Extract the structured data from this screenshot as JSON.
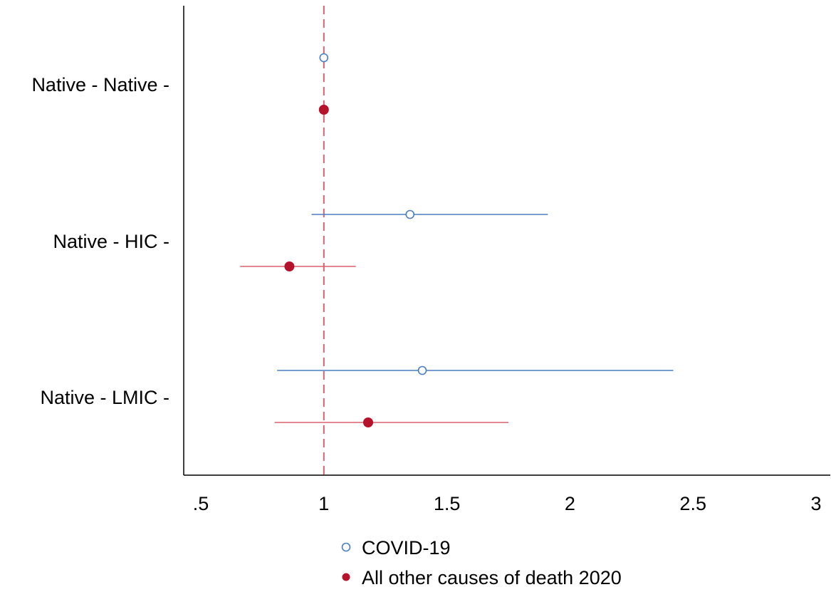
{
  "chart_data": {
    "type": "scatter",
    "subtype": "coefficient-plot",
    "orientation": "horizontal",
    "categories": [
      "Native - Native",
      "Native - HIC",
      "Native - LMIC"
    ],
    "category_tick_labels": [
      "Native - Native -",
      "Native - HIC -",
      "Native - LMIC -"
    ],
    "xlim": [
      0.5,
      3
    ],
    "xticks": [
      0.5,
      1,
      1.5,
      2,
      2.5,
      3
    ],
    "xtick_labels": [
      ".5",
      "1",
      "1.5",
      "2",
      "2.5",
      "3"
    ],
    "reference_line": {
      "x": 1,
      "style": "dashed",
      "color": "#d8606f"
    },
    "grid": false,
    "legend_position": "bottom",
    "series": [
      {
        "name": "COVID-19",
        "marker": "hollow-circle",
        "color": "#4a7ec0",
        "estimates": [
          1.0,
          1.35,
          1.4
        ],
        "ci_low": [
          null,
          0.95,
          0.81
        ],
        "ci_high": [
          null,
          1.91,
          2.42
        ]
      },
      {
        "name": "All other causes of death 2020",
        "marker": "filled-circle",
        "color": "#b5132b",
        "line_color": "#d8606f",
        "estimates": [
          1.0,
          0.86,
          1.18
        ],
        "ci_low": [
          null,
          0.66,
          0.8
        ],
        "ci_high": [
          null,
          1.13,
          1.75
        ]
      }
    ]
  }
}
